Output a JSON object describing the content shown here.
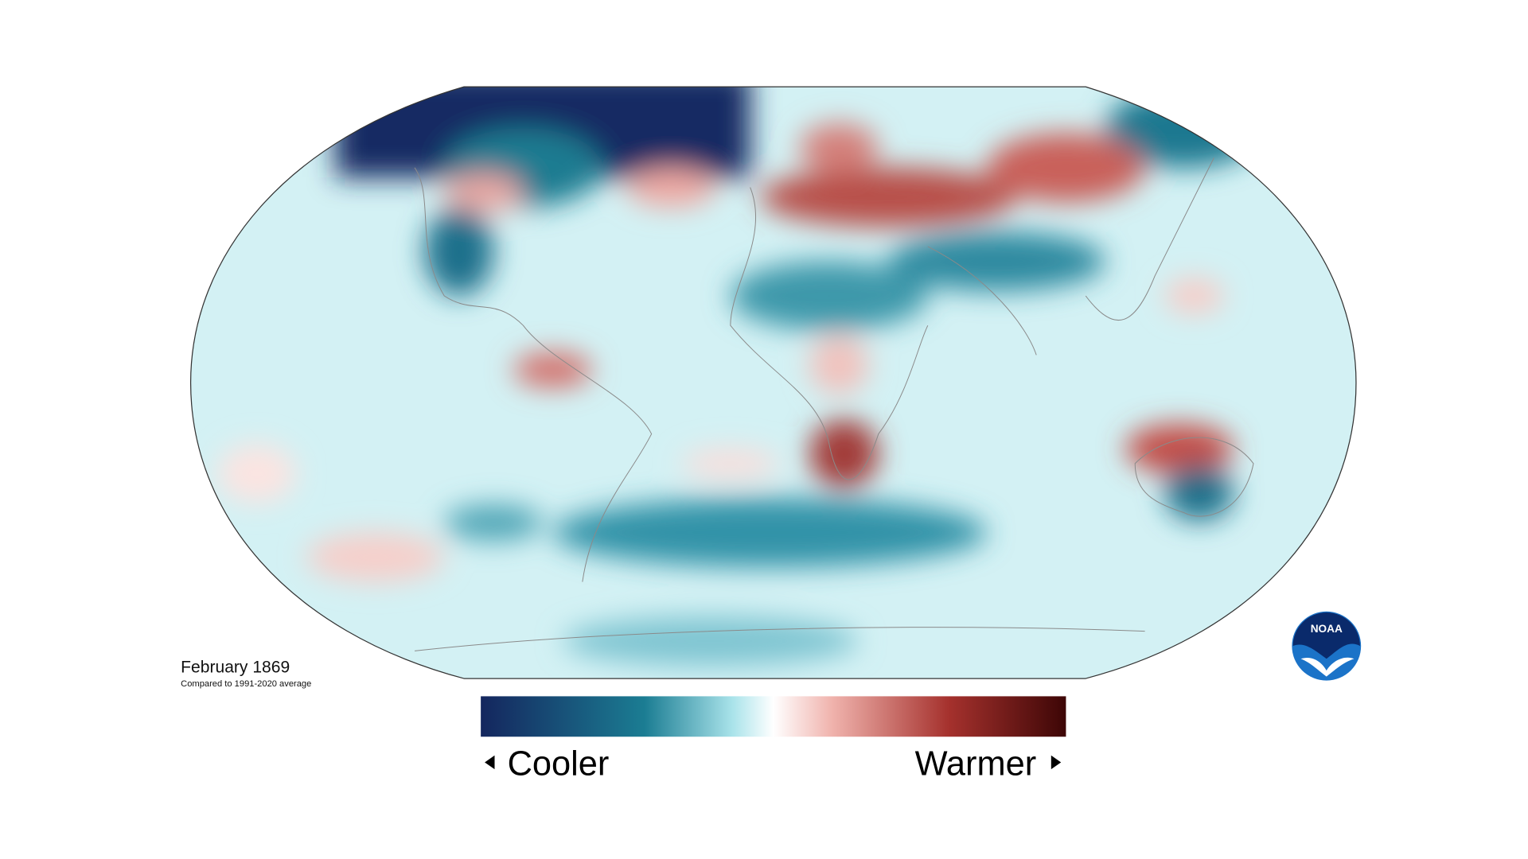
{
  "map": {
    "title": "February 1869",
    "subtitle": "Compared to 1991-2020 average"
  },
  "legend": {
    "low_label": "Cooler",
    "high_label": "Warmer"
  },
  "logo": {
    "text": "NOAA"
  }
}
